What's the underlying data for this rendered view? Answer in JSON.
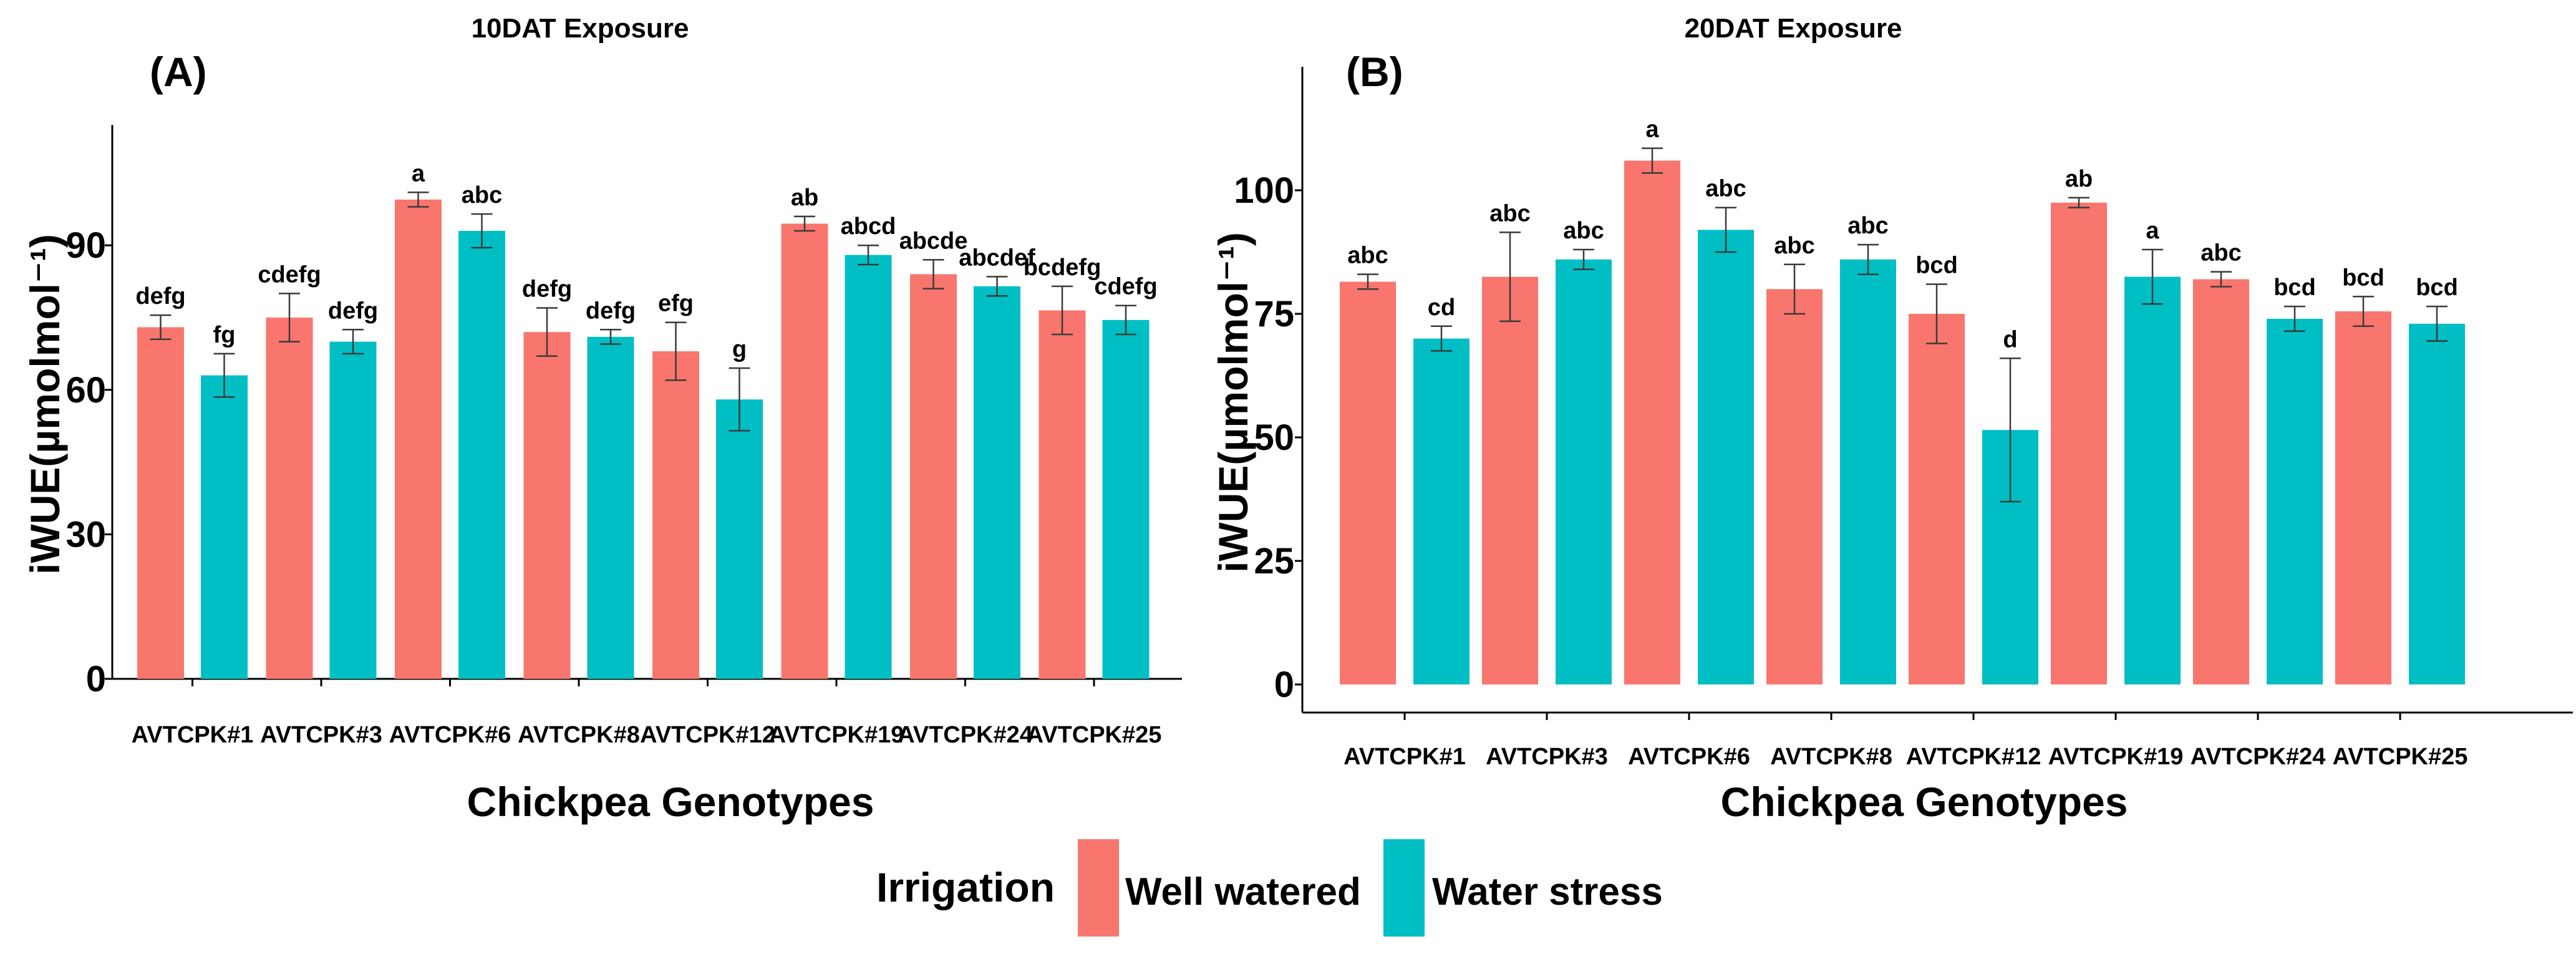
{
  "chart_data": [
    {
      "type": "bar",
      "panel": "(A)",
      "title": "10DAT Exposure",
      "xlabel": "Chickpea Genotypes",
      "ylabel": "iWUE(µmolmol⁻¹)",
      "ylim": [
        0,
        115
      ],
      "yticks": [
        0,
        30,
        60,
        90
      ],
      "categories": [
        "AVTCPK#1",
        "AVTCPK#3",
        "AVTCPK#6",
        "AVTCPK#8",
        "AVTCPK#12",
        "AVTCPK#19",
        "AVTCPK#24",
        "AVTCPK#25"
      ],
      "series": [
        {
          "name": "Well watered",
          "color": "#F8766D",
          "values": [
            73,
            75,
            99.5,
            72,
            68,
            94.5,
            84,
            76.5
          ],
          "errors": [
            2.5,
            5,
            1.5,
            5,
            6,
            1.5,
            3,
            5
          ],
          "labels": [
            "defg",
            "cdefg",
            "a",
            "defg",
            "efg",
            "ab",
            "abcde",
            "bcdefg"
          ]
        },
        {
          "name": "Water stress",
          "color": "#00BFC4",
          "values": [
            63,
            70,
            93,
            71,
            58,
            88,
            81.5,
            74.5
          ],
          "errors": [
            4.5,
            2.5,
            3.5,
            1.5,
            6.5,
            2,
            2,
            3
          ],
          "labels": [
            "fg",
            "defg",
            "abc",
            "defg",
            "g",
            "abcd",
            "abcdef",
            "cdefg"
          ]
        }
      ]
    },
    {
      "type": "bar",
      "panel": "(B)",
      "title": "20DAT Exposure",
      "xlabel": "Chickpea Genotypes",
      "ylabel": "iWUE(µmolmol⁻¹)",
      "ylim": [
        0,
        125
      ],
      "yticks": [
        0,
        25,
        50,
        75,
        100
      ],
      "categories": [
        "AVTCPK#1",
        "AVTCPK#3",
        "AVTCPK#6",
        "AVTCPK#8",
        "AVTCPK#12",
        "AVTCPK#19",
        "AVTCPK#24",
        "AVTCPK#25"
      ],
      "series": [
        {
          "name": "Well watered",
          "color": "#F8766D",
          "values": [
            81.5,
            82.5,
            106,
            80,
            75,
            97.5,
            82,
            75.5
          ],
          "errors": [
            1.5,
            9,
            2.5,
            5,
            6,
            1,
            1.5,
            3
          ],
          "labels": [
            "abc",
            "abc",
            "a",
            "abc",
            "bcd",
            "ab",
            "abc",
            "bcd"
          ]
        },
        {
          "name": "Water stress",
          "color": "#00BFC4",
          "values": [
            70,
            86,
            92,
            86,
            51.5,
            82.5,
            74,
            73
          ],
          "errors": [
            2.5,
            2,
            4.5,
            3,
            14.5,
            5.5,
            2.5,
            3.5
          ],
          "labels": [
            "cd",
            "abc",
            "abc",
            "abc",
            "d",
            "a",
            "bcd",
            "bcd"
          ]
        }
      ]
    }
  ],
  "legend": {
    "title": "Irrigation",
    "items": [
      {
        "label": "Well watered",
        "color": "#F8766D"
      },
      {
        "label": "Water stress",
        "color": "#00BFC4"
      }
    ]
  }
}
